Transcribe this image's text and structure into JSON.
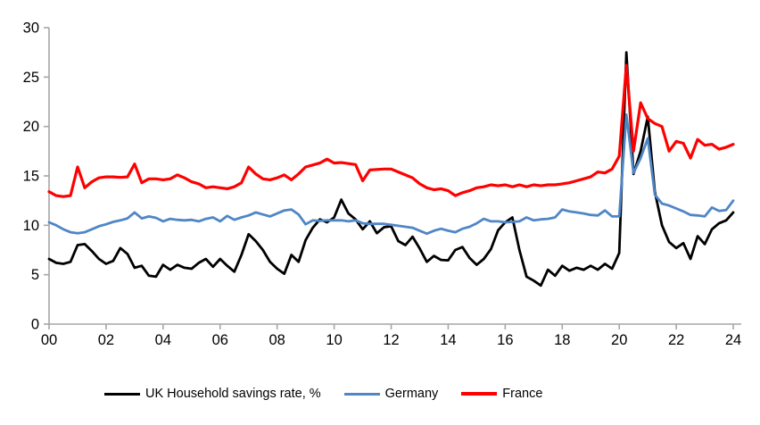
{
  "figure": {
    "background": "#ffffff",
    "title": ""
  },
  "chart_data": {
    "type": "line",
    "title": "",
    "xlabel": "",
    "ylabel": "",
    "grid": false,
    "legend_position": "bottom",
    "axis_color": "#a6a6a6",
    "text_color": "#000000",
    "ylim": [
      0,
      30
    ],
    "y_ticks": [
      0,
      5,
      10,
      15,
      20,
      25,
      30
    ],
    "xlim": [
      2000,
      2024.3
    ],
    "x_start": 2000,
    "x_step_years": 0.25,
    "x_tick_years": [
      2000,
      2002,
      2004,
      2006,
      2008,
      2010,
      2012,
      2014,
      2016,
      2018,
      2020,
      2022,
      2024
    ],
    "x_tick_labels": [
      "00",
      "02",
      "04",
      "06",
      "08",
      "10",
      "12",
      "14",
      "16",
      "18",
      "20",
      "22",
      "24"
    ],
    "series": [
      {
        "name": "UK Household savings rate, %",
        "color": "#000000",
        "stroke_width": 2.8,
        "values": [
          6.6,
          6.2,
          6.1,
          6.3,
          8.0,
          8.1,
          7.4,
          6.6,
          6.1,
          6.4,
          7.7,
          7.1,
          5.7,
          5.9,
          4.9,
          4.8,
          6.0,
          5.5,
          6.0,
          5.7,
          5.6,
          6.2,
          6.6,
          5.8,
          6.6,
          5.9,
          5.3,
          7.0,
          9.1,
          8.4,
          7.5,
          6.3,
          5.6,
          5.1,
          7.0,
          6.3,
          8.5,
          9.75,
          10.6,
          10.3,
          10.8,
          12.6,
          11.2,
          10.6,
          9.6,
          10.4,
          9.2,
          9.8,
          9.9,
          8.4,
          8.0,
          8.85,
          7.65,
          6.3,
          6.9,
          6.5,
          6.45,
          7.5,
          7.8,
          6.7,
          6.0,
          6.6,
          7.6,
          9.5,
          10.3,
          10.8,
          7.5,
          4.8,
          4.4,
          3.9,
          5.5,
          4.9,
          5.9,
          5.4,
          5.7,
          5.5,
          5.9,
          5.5,
          6.1,
          5.6,
          7.2,
          27.5,
          15.2,
          17.5,
          21.0,
          13.4,
          10.0,
          8.3,
          7.7,
          8.2,
          6.6,
          8.9,
          8.1,
          9.6,
          10.2,
          10.5,
          11.3
        ]
      },
      {
        "name": "Germany",
        "color": "#4f86c6",
        "stroke_width": 2.8,
        "values": [
          10.3,
          10.0,
          9.6,
          9.3,
          9.2,
          9.3,
          9.6,
          9.9,
          10.1,
          10.35,
          10.5,
          10.7,
          11.3,
          10.7,
          10.9,
          10.75,
          10.4,
          10.65,
          10.55,
          10.5,
          10.55,
          10.4,
          10.65,
          10.8,
          10.4,
          10.95,
          10.55,
          10.8,
          11.0,
          11.3,
          11.1,
          10.9,
          11.2,
          11.5,
          11.6,
          11.1,
          10.1,
          10.5,
          10.45,
          10.5,
          10.5,
          10.5,
          10.4,
          10.5,
          10.2,
          10.15,
          10.15,
          10.15,
          10.05,
          9.95,
          9.85,
          9.75,
          9.45,
          9.15,
          9.45,
          9.65,
          9.45,
          9.3,
          9.65,
          9.85,
          10.2,
          10.65,
          10.4,
          10.4,
          10.3,
          10.35,
          10.4,
          10.8,
          10.5,
          10.6,
          10.65,
          10.8,
          11.6,
          11.4,
          11.3,
          11.2,
          11.05,
          11.0,
          11.5,
          10.9,
          10.9,
          21.2,
          15.3,
          16.8,
          18.8,
          13.1,
          12.2,
          12.0,
          11.7,
          11.4,
          11.05,
          11.0,
          10.9,
          11.8,
          11.45,
          11.55,
          12.5
        ]
      },
      {
        "name": "France",
        "color": "#ff0000",
        "stroke_width": 3.2,
        "values": [
          13.4,
          13.0,
          12.9,
          13.0,
          15.9,
          13.8,
          14.4,
          14.8,
          14.9,
          14.9,
          14.85,
          14.9,
          16.2,
          14.3,
          14.7,
          14.7,
          14.6,
          14.7,
          15.1,
          14.8,
          14.4,
          14.2,
          13.8,
          13.9,
          13.8,
          13.7,
          13.9,
          14.3,
          15.9,
          15.2,
          14.7,
          14.6,
          14.8,
          15.1,
          14.6,
          15.2,
          15.9,
          16.1,
          16.3,
          16.7,
          16.3,
          16.35,
          16.25,
          16.15,
          14.5,
          15.6,
          15.65,
          15.7,
          15.7,
          15.4,
          15.1,
          14.8,
          14.2,
          13.8,
          13.6,
          13.7,
          13.5,
          13.0,
          13.3,
          13.5,
          13.8,
          13.9,
          14.1,
          14.0,
          14.1,
          13.9,
          14.1,
          13.9,
          14.1,
          14.0,
          14.1,
          14.1,
          14.2,
          14.3,
          14.5,
          14.7,
          14.9,
          15.4,
          15.3,
          15.7,
          17.0,
          26.2,
          17.5,
          22.4,
          20.8,
          20.3,
          20.0,
          17.5,
          18.5,
          18.3,
          16.8,
          18.7,
          18.1,
          18.2,
          17.7,
          17.9,
          18.2
        ]
      }
    ]
  },
  "legend": {
    "items": [
      {
        "label": "UK Household savings rate, %"
      },
      {
        "label": "Germany"
      },
      {
        "label": "France"
      }
    ]
  }
}
